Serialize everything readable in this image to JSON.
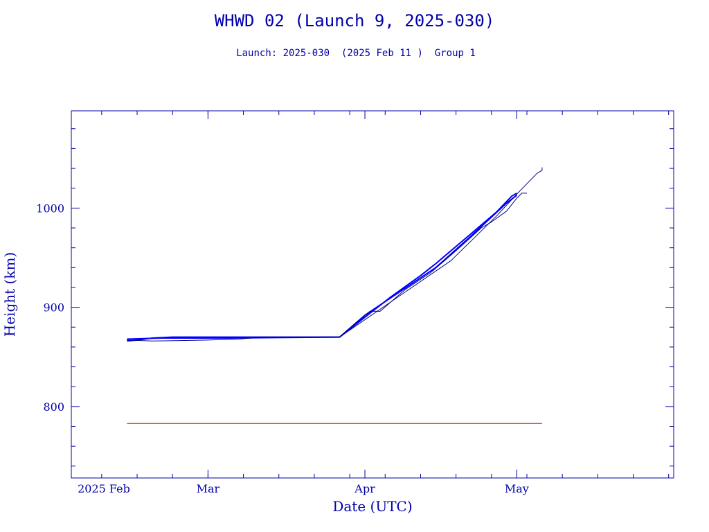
{
  "chart_data": {
    "type": "line",
    "title": "WHWD 02 (Launch 9, 2025-030)",
    "subtitle": "Launch: 2025-030  (2025 Feb 11 )  Group 1",
    "xlabel": "Date (UTC)",
    "ylabel": "Height (km)",
    "xlim": [
      "2025-02-02",
      "2025-06-01"
    ],
    "ylim": [
      728,
      1098
    ],
    "x_ticks": [
      {
        "date": "2025-02-01",
        "label": "2025 Feb"
      },
      {
        "date": "2025-03-01",
        "label": "Mar"
      },
      {
        "date": "2025-04-01",
        "label": "Apr"
      },
      {
        "date": "2025-05-01",
        "label": "May"
      }
    ],
    "y_ticks": [
      800,
      900,
      1000
    ],
    "grid": false,
    "colors": {
      "axis": "#0000aa",
      "orbit": "#0000ff",
      "reference": "#ff0000"
    },
    "series": [
      {
        "color": "#0000ff",
        "points": [
          [
            "2025-02-13",
            866
          ],
          [
            "2025-02-15",
            867
          ],
          [
            "2025-02-18",
            869
          ],
          [
            "2025-02-22",
            870
          ],
          [
            "2025-03-01",
            870
          ],
          [
            "2025-03-10",
            870
          ],
          [
            "2025-03-20",
            870
          ],
          [
            "2025-03-27",
            870
          ],
          [
            "2025-03-31",
            886
          ],
          [
            "2025-04-03",
            898
          ],
          [
            "2025-04-06",
            910
          ],
          [
            "2025-04-09",
            921
          ],
          [
            "2025-04-12",
            932
          ],
          [
            "2025-04-15",
            944
          ],
          [
            "2025-04-18",
            957
          ],
          [
            "2025-04-21",
            970
          ],
          [
            "2025-04-24",
            983
          ],
          [
            "2025-04-27",
            996
          ],
          [
            "2025-04-30",
            1012
          ],
          [
            "2025-05-01",
            1015
          ]
        ]
      },
      {
        "color": "#0000ff",
        "points": [
          [
            "2025-02-13",
            868
          ],
          [
            "2025-02-20",
            869
          ],
          [
            "2025-03-05",
            869
          ],
          [
            "2025-03-27",
            870
          ],
          [
            "2025-04-01",
            892
          ],
          [
            "2025-04-08",
            916
          ],
          [
            "2025-04-15",
            940
          ],
          [
            "2025-04-22",
            972
          ],
          [
            "2025-04-29",
            1005
          ],
          [
            "2025-05-01",
            1013
          ]
        ]
      },
      {
        "color": "#000080",
        "points": [
          [
            "2025-02-13",
            867
          ],
          [
            "2025-02-18",
            866
          ],
          [
            "2025-03-01",
            867
          ],
          [
            "2025-03-07",
            868
          ],
          [
            "2025-03-12",
            870
          ],
          [
            "2025-03-27",
            870
          ],
          [
            "2025-04-02",
            896
          ],
          [
            "2025-04-04",
            896
          ],
          [
            "2025-04-09",
            918
          ],
          [
            "2025-04-14",
            935
          ],
          [
            "2025-04-19",
            957
          ],
          [
            "2025-04-24",
            980
          ],
          [
            "2025-04-26",
            986
          ],
          [
            "2025-04-29",
            997
          ],
          [
            "2025-05-01",
            1010
          ],
          [
            "2025-05-02",
            1015
          ],
          [
            "2025-05-03",
            1015
          ]
        ]
      },
      {
        "color": "#000080",
        "points": [
          [
            "2025-03-27",
            870
          ],
          [
            "2025-04-08",
            912
          ],
          [
            "2025-04-18",
            947
          ],
          [
            "2025-04-27",
            992
          ],
          [
            "2025-05-01",
            1014
          ],
          [
            "2025-05-05",
            1035
          ],
          [
            "2025-05-06",
            1038
          ],
          [
            "2025-05-06",
            1041
          ]
        ]
      },
      {
        "color": "#ff0000",
        "points": [
          [
            "2025-02-13",
            783
          ],
          [
            "2025-05-06",
            783
          ]
        ]
      }
    ]
  }
}
